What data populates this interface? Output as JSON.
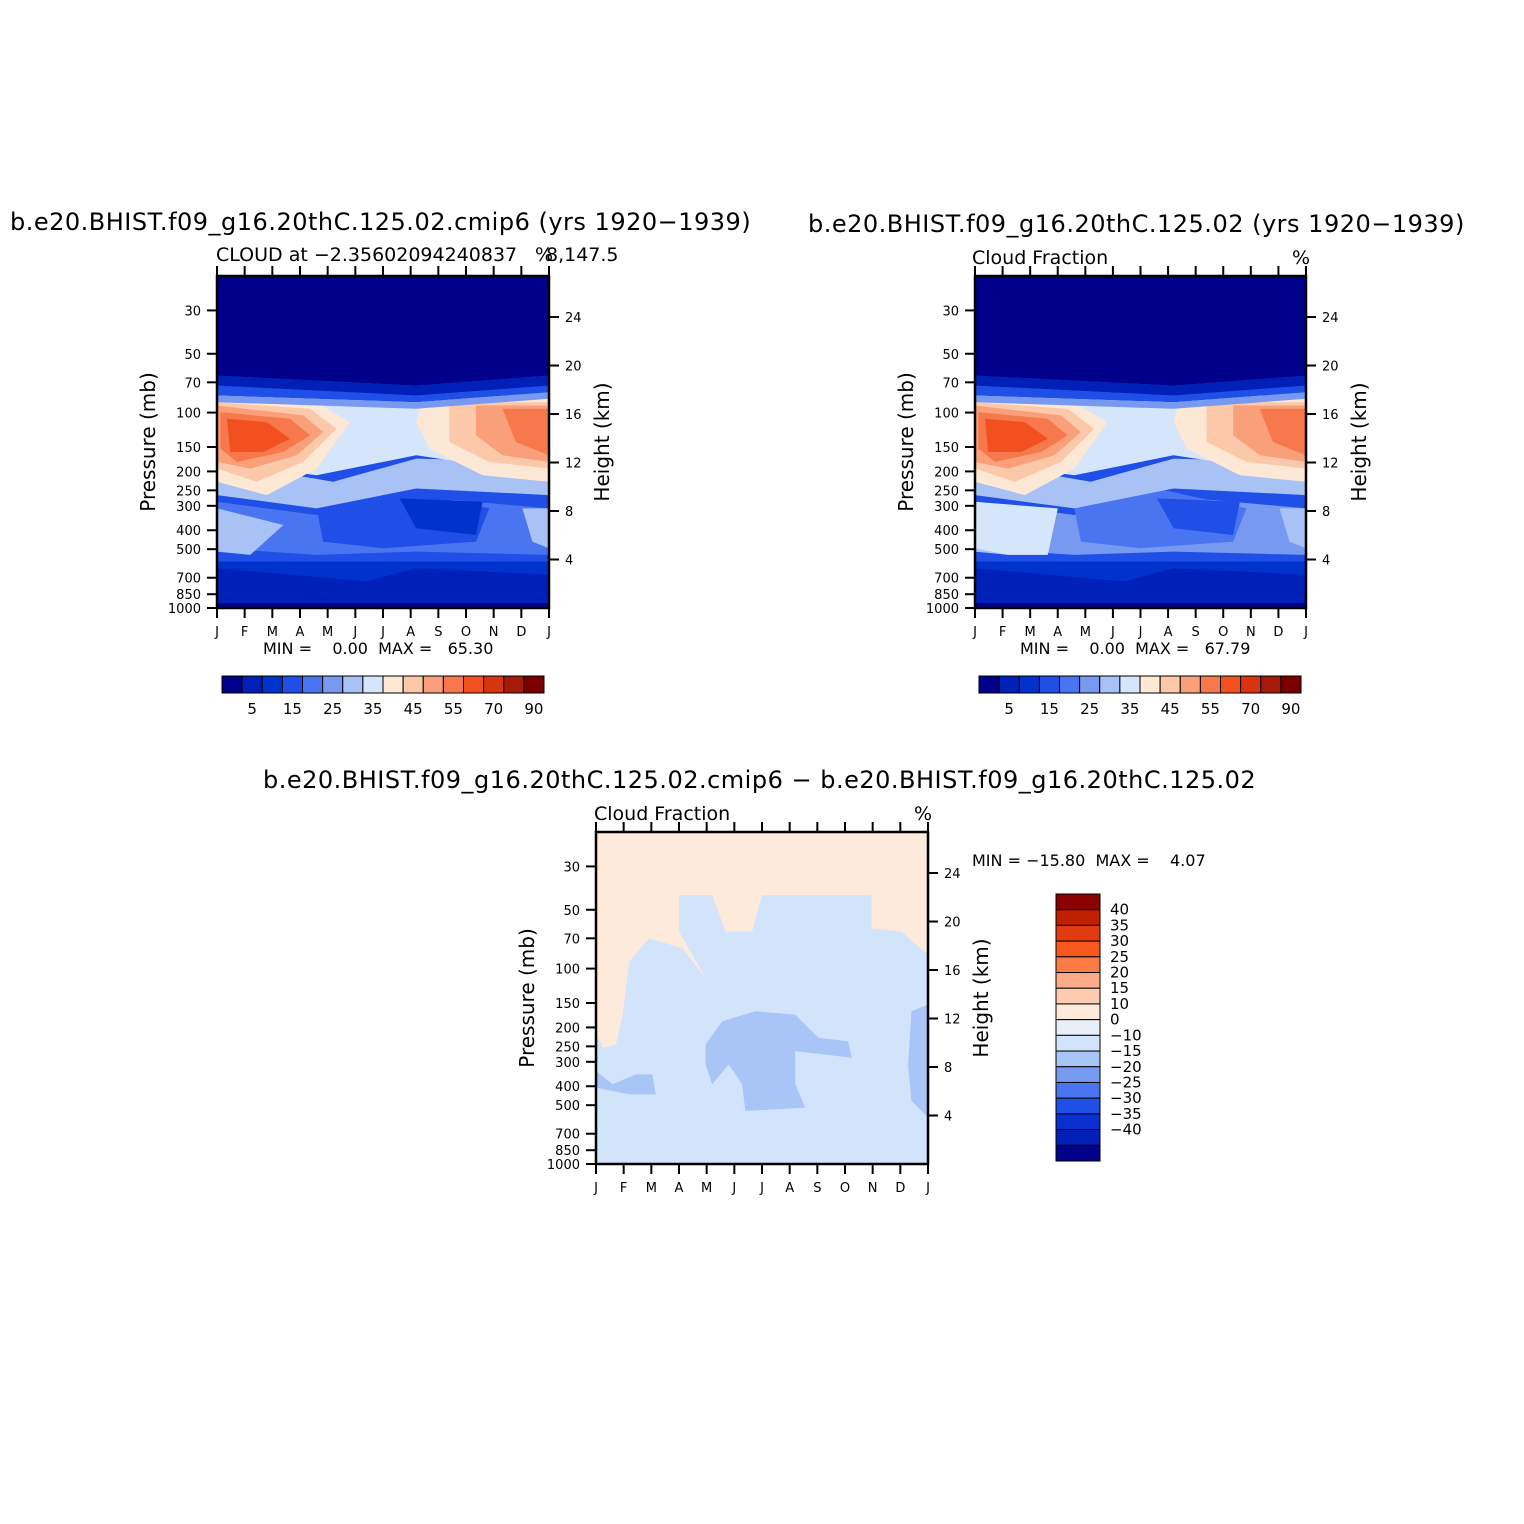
{
  "panels": [
    {
      "id": "p1",
      "title": "b.e20.BHIST.f09_g16.20thC.125.02.cmip6 (yrs 1920−1939)",
      "subtitle_left": "CLOUD at −2.35602094240837",
      "subtitle_right": "8,147.5",
      "units": "%",
      "stats": "MIN =    0.00  MAX =   65.30",
      "min": 0.0,
      "max": 65.3
    },
    {
      "id": "p2",
      "title": "b.e20.BHIST.f09_g16.20thC.125.02 (yrs 1920−1939)",
      "subtitle_left": "Cloud Fraction",
      "subtitle_right": "",
      "units": "%",
      "stats": "MIN =    0.00  MAX =   67.79",
      "min": 0.0,
      "max": 67.79
    },
    {
      "id": "p3",
      "title": "b.e20.BHIST.f09_g16.20thC.125.02.cmip6 − b.e20.BHIST.f09_g16.20thC.125.02",
      "subtitle_left": "Cloud Fraction",
      "subtitle_right": "",
      "units": "%",
      "stats": "MIN = −15.80  MAX =    4.07",
      "min": -15.8,
      "max": 4.07
    }
  ],
  "chart_data": [
    {
      "type": "contour",
      "panel": "p1",
      "x": [
        "J",
        "F",
        "M",
        "A",
        "M",
        "J",
        "J",
        "A",
        "S",
        "O",
        "N",
        "D",
        "J"
      ],
      "y_pressure_mb": [
        30,
        50,
        70,
        100,
        150,
        200,
        250,
        300,
        400,
        500,
        700,
        850,
        1000
      ],
      "y_height_km": [
        24,
        20,
        16,
        12,
        8,
        4
      ],
      "xlabel": "",
      "ylabel": "Pressure (mb)",
      "ylabel_right": "Height (km)",
      "min": 0.0,
      "max": 65.3
    },
    {
      "type": "contour",
      "panel": "p2",
      "x": [
        "J",
        "F",
        "M",
        "A",
        "M",
        "J",
        "J",
        "A",
        "S",
        "O",
        "N",
        "D",
        "J"
      ],
      "y_pressure_mb": [
        30,
        50,
        70,
        100,
        150,
        200,
        250,
        300,
        400,
        500,
        700,
        850,
        1000
      ],
      "y_height_km": [
        24,
        20,
        16,
        12,
        8,
        4
      ],
      "xlabel": "",
      "ylabel": "Pressure (mb)",
      "ylabel_right": "Height (km)",
      "min": 0.0,
      "max": 67.79
    },
    {
      "type": "contour",
      "panel": "p3",
      "x": [
        "J",
        "F",
        "M",
        "A",
        "M",
        "J",
        "J",
        "A",
        "S",
        "O",
        "N",
        "D",
        "J"
      ],
      "y_pressure_mb": [
        30,
        50,
        70,
        100,
        150,
        200,
        250,
        300,
        400,
        500,
        700,
        850,
        1000
      ],
      "y_height_km": [
        24,
        20,
        16,
        12,
        8,
        4
      ],
      "xlabel": "",
      "ylabel": "Pressure (mb)",
      "ylabel_right": "Height (km)",
      "min": -15.8,
      "max": 4.07
    }
  ],
  "colorbar_top": {
    "labels": [
      "5",
      "15",
      "25",
      "35",
      "45",
      "55",
      "70",
      "90"
    ],
    "colors": [
      "#00008b",
      "#0020b8",
      "#0033cc",
      "#1f4fe6",
      "#4a75f0",
      "#7799f0",
      "#a8c2f5",
      "#d6e6fa",
      "#fde8d6",
      "#fcc8aa",
      "#f9a07a",
      "#f7784a",
      "#f2501e",
      "#d83410",
      "#a51a08",
      "#7a0000"
    ]
  },
  "colorbar_diff": {
    "labels": [
      "40",
      "35",
      "30",
      "25",
      "20",
      "15",
      "10",
      "0",
      "−10",
      "−15",
      "−20",
      "−25",
      "−30",
      "−35",
      "−40"
    ],
    "colors": [
      "#8b0000",
      "#c01f00",
      "#e23b10",
      "#f7581e",
      "#fa7b45",
      "#fcaa88",
      "#fdcbb0",
      "#feeada",
      "#e9eef8",
      "#d2e4fb",
      "#a9c4f7",
      "#779bf2",
      "#4a75f0",
      "#1f4fe6",
      "#0a2fd0",
      "#0020b8",
      "#00008b"
    ]
  },
  "colors": {
    "deep_blue": "#00008b",
    "pale_orange": "#feeada",
    "pale_blue": "#d6e8fc"
  }
}
